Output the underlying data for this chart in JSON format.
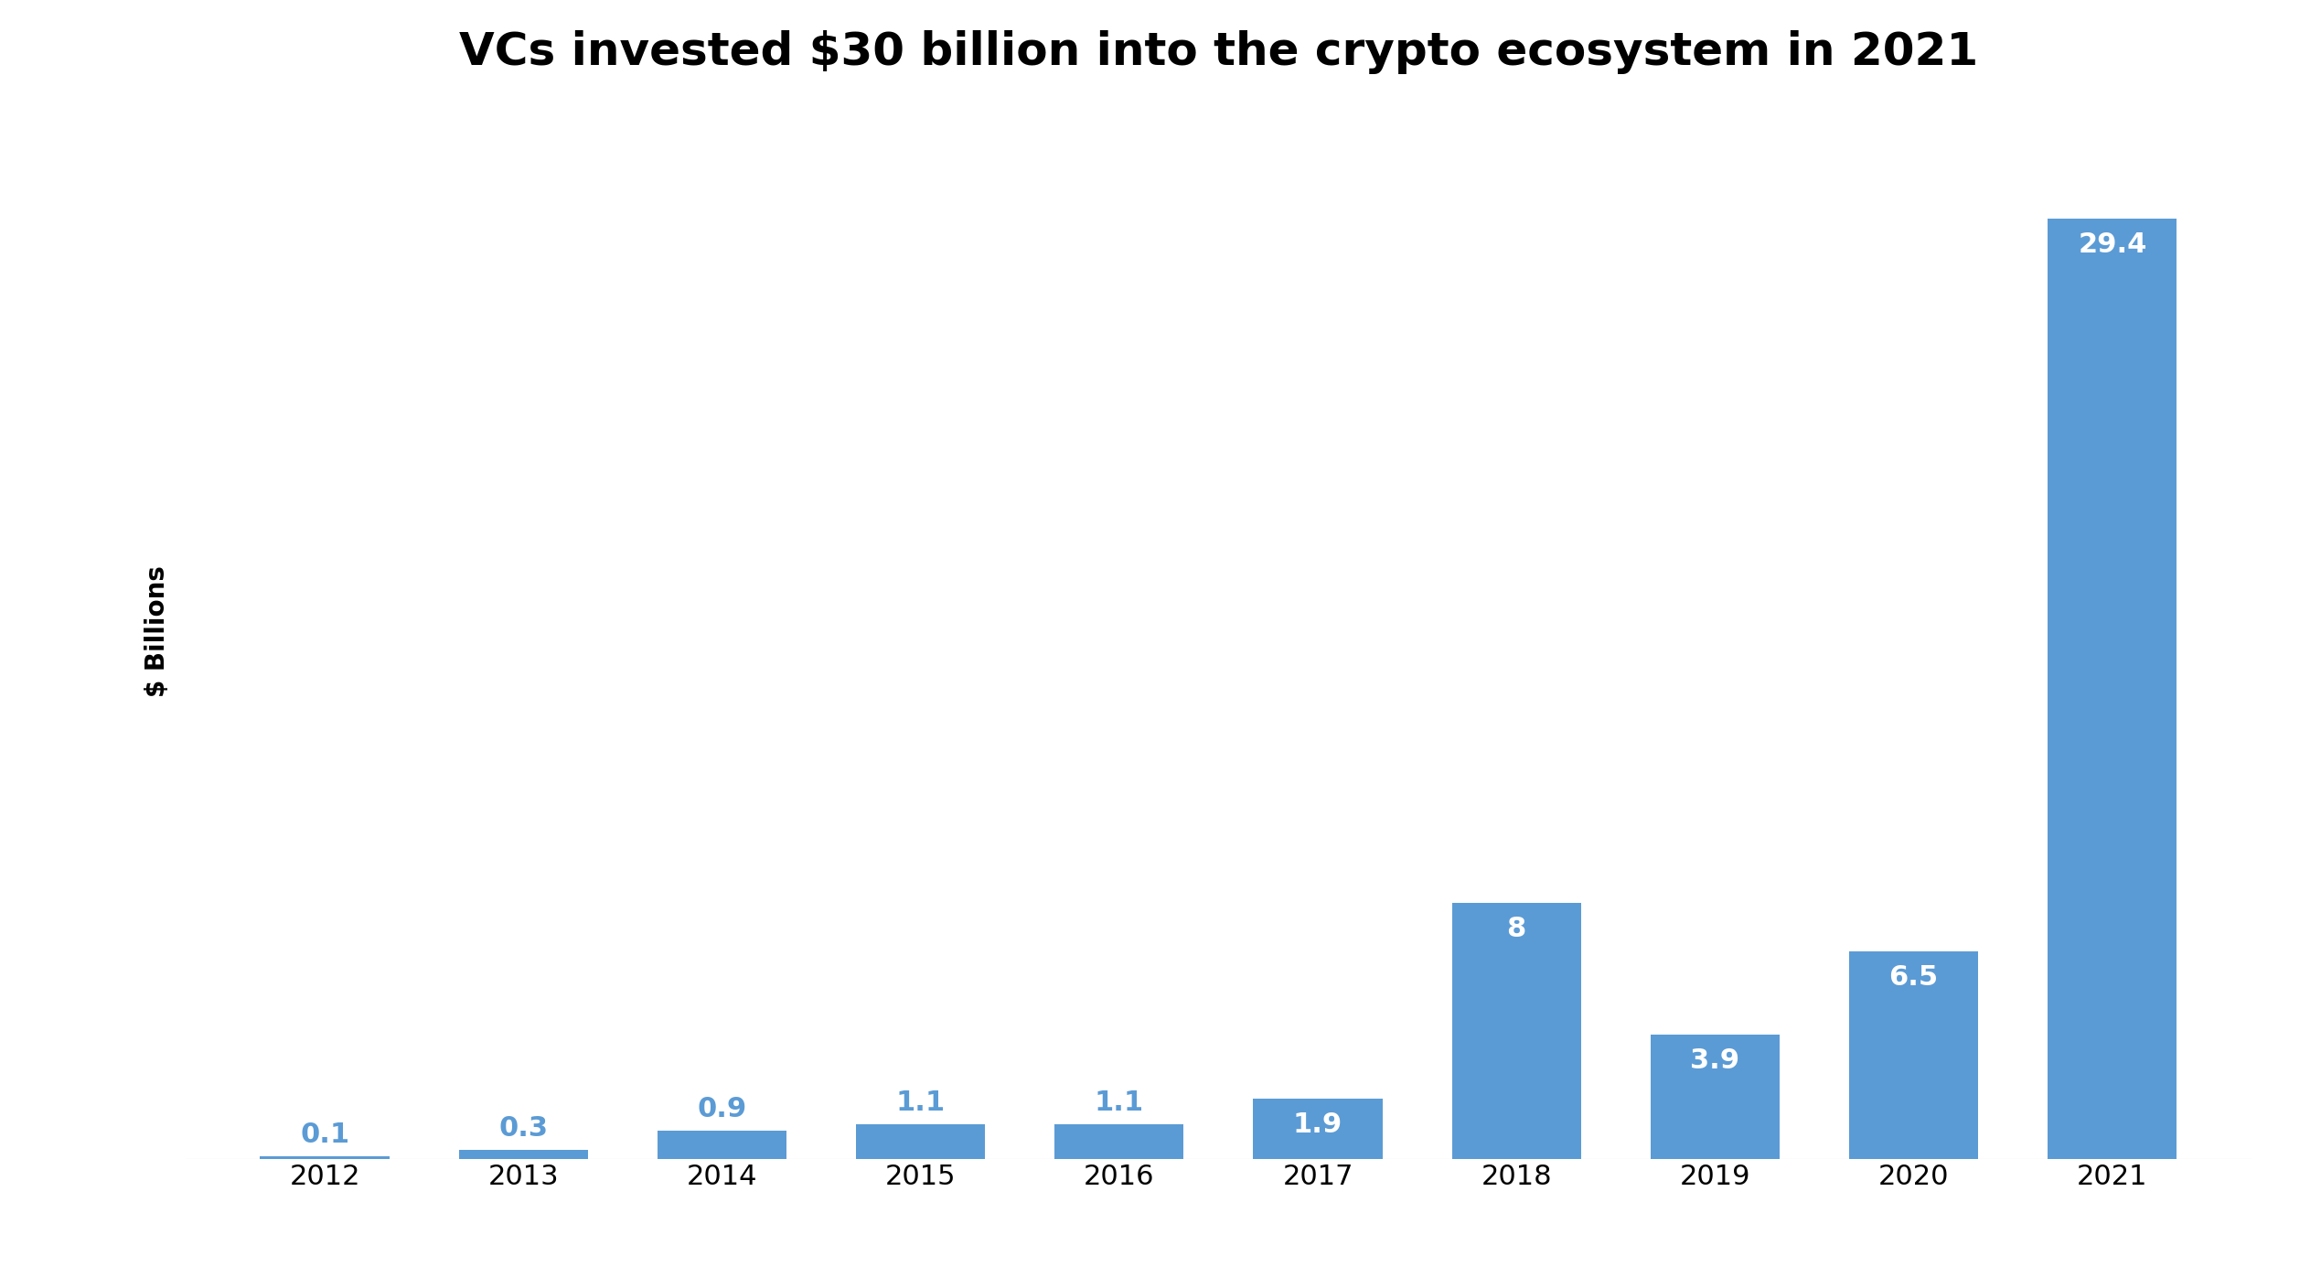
{
  "title": "VCs invested $30 billion into the crypto ecosystem in 2021",
  "ylabel": "$ Billions",
  "categories": [
    "2012",
    "2013",
    "2014",
    "2015",
    "2016",
    "2017",
    "2018",
    "2019",
    "2020",
    "2021"
  ],
  "values": [
    0.1,
    0.3,
    0.9,
    1.1,
    1.1,
    1.9,
    8.0,
    3.9,
    6.5,
    29.4
  ],
  "bar_color": "#5B9BD5",
  "label_color_above": "#5B9BD5",
  "label_color_inside": "#FFFFFF",
  "title_fontsize": 36,
  "ylabel_fontsize": 20,
  "tick_fontsize": 22,
  "label_fontsize": 22,
  "background_color": "#FFFFFF",
  "ylim": [
    0,
    33
  ],
  "inside_label_threshold": 1.5,
  "bar_width": 0.65
}
